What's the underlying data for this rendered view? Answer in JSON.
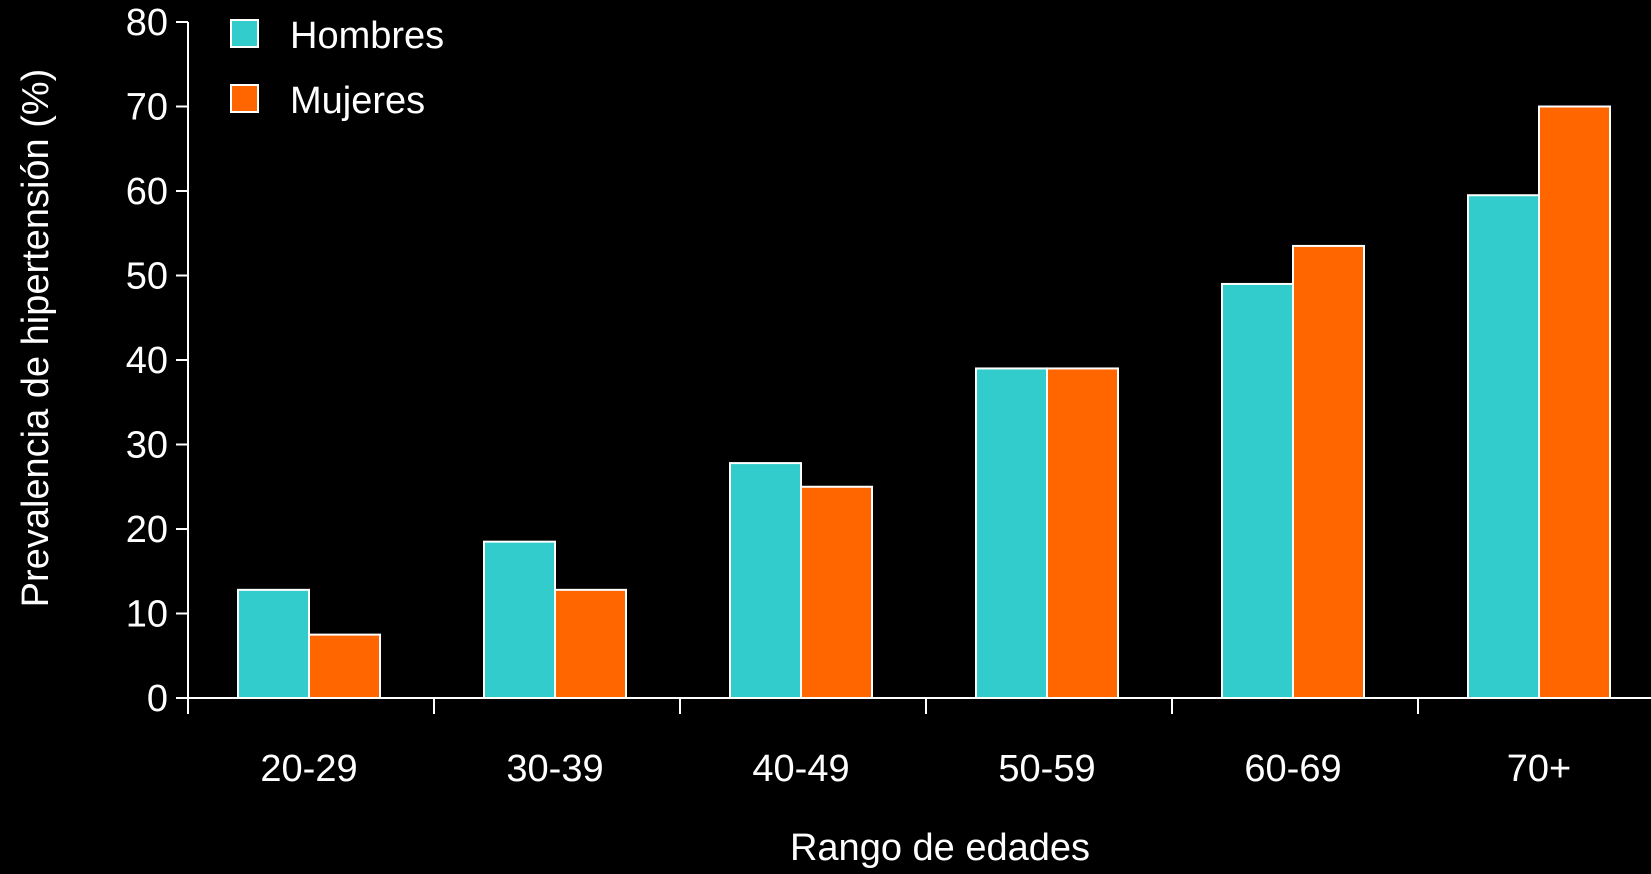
{
  "chart_data": {
    "type": "bar",
    "title": "",
    "xlabel": "Rango de edades",
    "ylabel": "Prevalencia de hipertensión (%)",
    "ylim": [
      0,
      80
    ],
    "yticks": [
      "0",
      "10",
      "20",
      "30",
      "40",
      "50",
      "60",
      "70",
      "80"
    ],
    "categories": [
      "20-29",
      "30-39",
      "40-49",
      "50-59",
      "60-69",
      "70+"
    ],
    "series": [
      {
        "name": "Hombres",
        "color": "#33cccc",
        "values": [
          12.8,
          18.5,
          27.8,
          39,
          49,
          59.5
        ]
      },
      {
        "name": "Mujeres",
        "color": "#ff6600",
        "values": [
          7.5,
          12.8,
          25,
          39,
          53.5,
          70
        ]
      }
    ],
    "legend": "top-left",
    "grid": false
  }
}
